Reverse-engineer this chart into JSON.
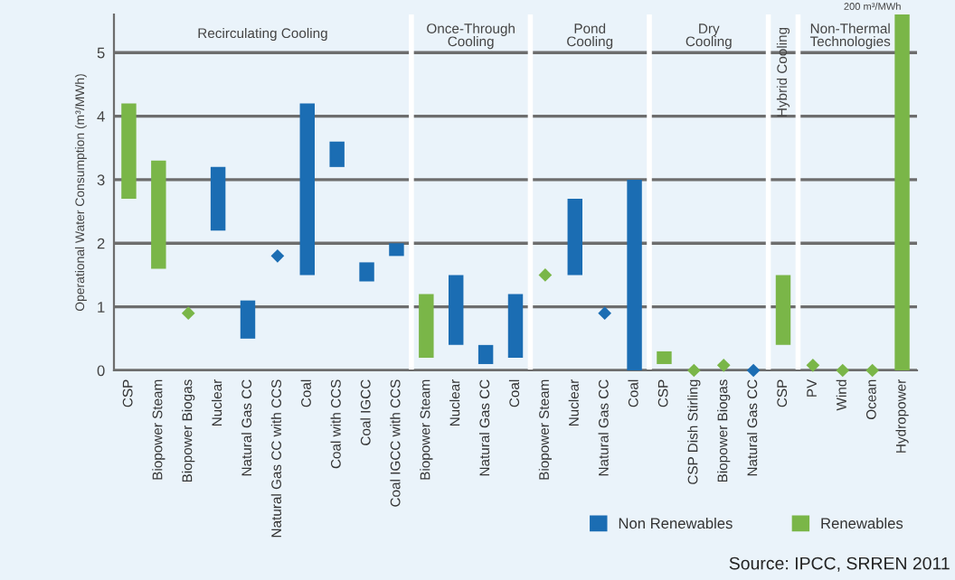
{
  "chart_data": {
    "type": "bar",
    "ylabel": "Operational Water Consumption (m³/MWh)",
    "categories": [
      "CSP",
      "Biopower Steam",
      "Biopower Biogas",
      "Nuclear",
      "Natural Gas CC",
      "Natural Gas CC with CCS",
      "Coal",
      "Coal with CCS",
      "Coal IGCC",
      "Coal IGCC with CCS",
      "Biopower Steam",
      "Nuclear",
      "Natural Gas CC",
      "Coal",
      "Biopower Steam",
      "Nuclear",
      "Natural Gas CC",
      "Coal",
      "CSP",
      "CSP Dish Stirling",
      "Biopower Biogas",
      "Natural Gas CC",
      "CSP",
      "PV",
      "Wind",
      "Ocean",
      "Hydropower"
    ],
    "series": [
      {
        "name": "Non Renewables",
        "color": "#1b6db3",
        "base": [
          null,
          null,
          null,
          2.2,
          0.5,
          null,
          1.5,
          3.2,
          1.4,
          1.8,
          null,
          0.4,
          0.1,
          0.2,
          null,
          1.5,
          null,
          0,
          null,
          null,
          null,
          null,
          null,
          null,
          null,
          null,
          null
        ],
        "values": [
          null,
          null,
          null,
          1.0,
          0.6,
          null,
          2.7,
          0.4,
          0.3,
          0.2,
          null,
          1.1,
          0.3,
          1.0,
          null,
          1.2,
          null,
          3.0,
          null,
          null,
          null,
          null,
          null,
          null,
          null,
          null,
          null
        ]
      },
      {
        "name": "Renewables",
        "color": "#7ab648",
        "base": [
          2.7,
          1.6,
          null,
          null,
          null,
          null,
          null,
          null,
          null,
          null,
          0.2,
          null,
          null,
          null,
          null,
          null,
          null,
          null,
          0.1,
          null,
          null,
          null,
          0.4,
          null,
          null,
          null,
          0
        ],
        "values": [
          1.5,
          1.7,
          null,
          null,
          null,
          null,
          null,
          null,
          null,
          null,
          1.0,
          null,
          null,
          null,
          null,
          null,
          null,
          null,
          0.2,
          null,
          null,
          null,
          1.1,
          null,
          null,
          null,
          200
        ]
      },
      {
        "color": "#1b6db3",
        "type": "scatter",
        "marker": "diamond",
        "values": [
          null,
          null,
          null,
          null,
          null,
          1.8,
          null,
          null,
          null,
          null,
          null,
          null,
          null,
          null,
          null,
          null,
          0.9,
          null,
          null,
          null,
          null,
          0,
          null,
          null,
          null,
          null,
          null
        ]
      },
      {
        "color": "#7ab648",
        "type": "scatter",
        "marker": "diamond",
        "values": [
          null,
          null,
          0.9,
          null,
          null,
          null,
          null,
          null,
          null,
          null,
          null,
          null,
          null,
          null,
          1.5,
          null,
          null,
          null,
          null,
          0,
          0.08,
          null,
          null,
          0.08,
          0,
          0,
          null
        ]
      }
    ],
    "ylim": [
      0,
      5.6
    ],
    "yticks": [
      0,
      1,
      2,
      3,
      4,
      5
    ],
    "grid": "y",
    "legend": "bottom right",
    "annotations": [
      "Recirculating Cooling",
      "Once-Through\nCooling",
      "Pond\nCooling",
      "Dry\nCooling",
      "Hybrid Cooling",
      "Non-Thermal\nTechnologies",
      "200 m³/MWh",
      "Source: IPCC, SRREN 2011"
    ]
  }
}
